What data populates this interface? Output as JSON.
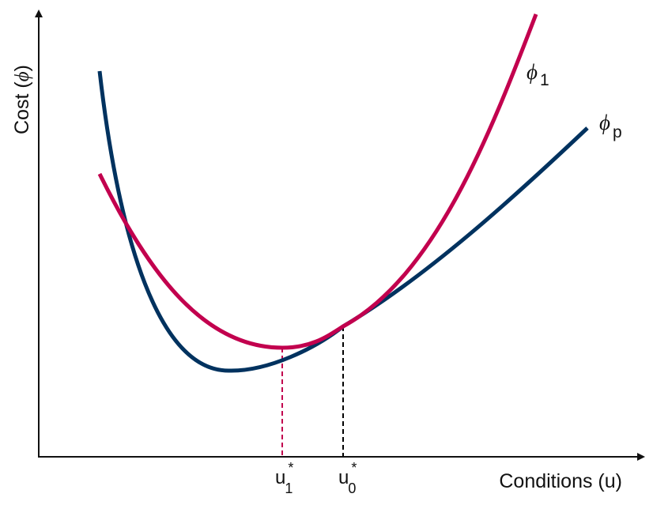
{
  "diagram": {
    "axes": {
      "xlabel": "Conditions (u)",
      "ylabel_prefix": "Cost (",
      "ylabel_symbol": "ϕ",
      "ylabel_suffix": ")"
    },
    "curves": [
      {
        "id": "phi_1",
        "symbol": "ϕ",
        "subscript": "1",
        "color": "#c2004e"
      },
      {
        "id": "phi_p",
        "symbol": "ϕ",
        "subscript": "p",
        "color": "#00325f"
      }
    ],
    "markers": [
      {
        "base": "u",
        "superscript": "*",
        "subscript": "1",
        "line_color": "#c2004e",
        "line_style": "dashed"
      },
      {
        "base": "u",
        "superscript": "*",
        "subscript": "0",
        "line_color": "#000000",
        "line_style": "dashed"
      }
    ],
    "axis_color": "#111111"
  }
}
